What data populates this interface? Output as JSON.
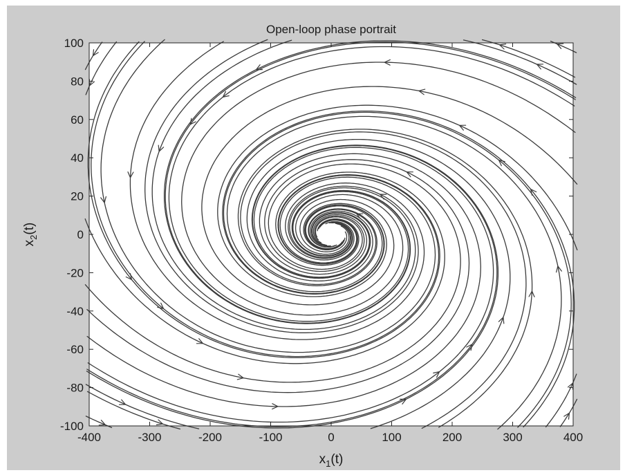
{
  "chart_data": {
    "type": "phase-portrait",
    "title": "Open-loop phase portrait",
    "xlabel": {
      "base": "x",
      "sub": "1",
      "suffix": "(t)"
    },
    "ylabel": {
      "base": "x",
      "sub": "2",
      "suffix": "(t)"
    },
    "xlim": [
      -400,
      400
    ],
    "ylim": [
      -100,
      100
    ],
    "xticks": [
      -400,
      -300,
      -200,
      -100,
      0,
      100,
      200,
      300,
      400
    ],
    "yticks": [
      100,
      80,
      60,
      40,
      20,
      0,
      -20,
      -40,
      -60,
      -80,
      -100
    ],
    "grid": false,
    "legend": "none",
    "colors": {
      "figure_bg": "#cccccc",
      "axes_bg": "#ffffff",
      "lines": "#3a3a3a"
    }
  }
}
